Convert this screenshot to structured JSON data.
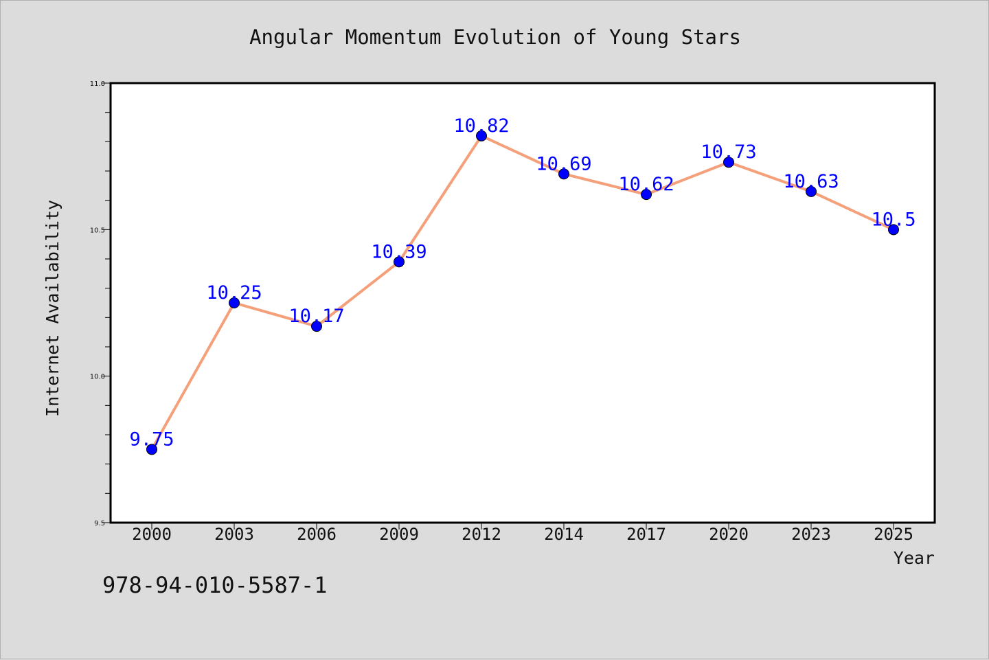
{
  "chart_data": {
    "type": "line",
    "title": "Angular Momentum Evolution of Young Stars",
    "xlabel": "Year",
    "ylabel": "Internet Availability",
    "categories": [
      "2000",
      "2003",
      "2006",
      "2009",
      "2012",
      "2014",
      "2017",
      "2020",
      "2023",
      "2025"
    ],
    "series": [
      {
        "values": [
          9.75,
          10.25,
          10.17,
          10.39,
          10.82,
          10.69,
          10.62,
          10.73,
          10.63,
          10.5
        ]
      }
    ],
    "data_labels": [
      "9.75",
      "10.25",
      "10.17",
      "10.39",
      "10.82",
      "10.69",
      "10.62",
      "10.73",
      "10.63",
      "10.5"
    ],
    "ylim": [
      9.5,
      11.0
    ],
    "y_ticks": [
      "9.5",
      "10.0",
      "10.5",
      "11.0"
    ],
    "y_minor_step": 0.1,
    "grid": false,
    "legend": "none",
    "colors": {
      "background": "#dcdcdc",
      "plot_background": "#ffffff",
      "line": "#f4a07a",
      "marker": "#0000ff",
      "data_label": "#0000ff",
      "text": "#111111"
    }
  },
  "footer": {
    "text": "978-94-010-5587-1"
  }
}
